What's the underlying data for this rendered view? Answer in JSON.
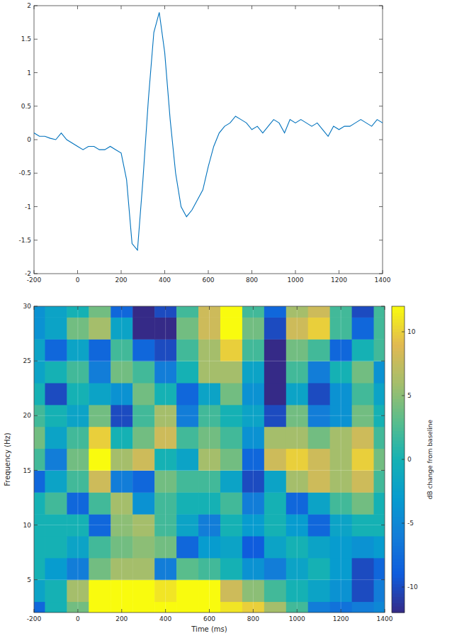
{
  "chart_data": [
    {
      "type": "line",
      "x": [
        -200,
        -175,
        -150,
        -125,
        -100,
        -75,
        -50,
        -25,
        0,
        25,
        50,
        75,
        100,
        125,
        150,
        175,
        200,
        225,
        250,
        275,
        300,
        325,
        350,
        375,
        400,
        425,
        450,
        475,
        500,
        525,
        550,
        575,
        600,
        625,
        650,
        675,
        700,
        725,
        750,
        775,
        800,
        825,
        850,
        875,
        900,
        925,
        950,
        975,
        1000,
        1025,
        1050,
        1075,
        1100,
        1125,
        1150,
        1175,
        1200,
        1225,
        1250,
        1275,
        1300,
        1325,
        1350,
        1375,
        1400
      ],
      "values": [
        0.1,
        0.05,
        0.05,
        0.02,
        0,
        0.1,
        0,
        -0.05,
        -0.1,
        -0.15,
        -0.1,
        -0.1,
        -0.15,
        -0.15,
        -0.1,
        -0.15,
        -0.2,
        -0.6,
        -1.55,
        -1.65,
        -0.6,
        0.6,
        1.6,
        1.9,
        1.3,
        0.3,
        -0.5,
        -1.0,
        -1.15,
        -1.05,
        -0.9,
        -0.75,
        -0.4,
        -0.1,
        0.1,
        0.2,
        0.25,
        0.35,
        0.3,
        0.25,
        0.15,
        0.2,
        0.1,
        0.2,
        0.3,
        0.25,
        0.1,
        0.3,
        0.25,
        0.3,
        0.25,
        0.2,
        0.25,
        0.15,
        0.05,
        0.2,
        0.15,
        0.2,
        0.2,
        0.25,
        0.3,
        0.25,
        0.2,
        0.3,
        0.25
      ],
      "color": "#0072bd",
      "xlim": [
        -200,
        1400
      ],
      "xticks": [
        -200,
        0,
        200,
        400,
        600,
        800,
        1000,
        1200,
        1400
      ],
      "ylim": [
        -2,
        2
      ],
      "yticks": [
        -2,
        -1.5,
        -1,
        -0.5,
        0,
        0.5,
        1,
        1.5,
        2
      ],
      "grid": false
    },
    {
      "type": "heatmap",
      "x_label": "Time (ms)",
      "y_label": "Frequency (Hz)",
      "x": [
        -200,
        -100,
        0,
        100,
        200,
        300,
        400,
        500,
        600,
        700,
        800,
        900,
        1000,
        1100,
        1200,
        1300,
        1400
      ],
      "y": [
        2,
        4,
        6,
        8,
        10,
        12,
        14,
        16,
        18,
        20,
        22,
        24,
        26,
        28,
        30
      ],
      "values": [
        [
          -8,
          0,
          4,
          12,
          12,
          12,
          12,
          12,
          12,
          11,
          10,
          6,
          2,
          -6,
          -7,
          -6,
          -5
        ],
        [
          -2,
          0,
          6,
          12,
          12,
          12,
          11,
          12,
          12,
          8,
          5,
          2,
          0,
          -2,
          -4,
          -10,
          -6
        ],
        [
          0,
          -3,
          -6,
          4,
          6,
          6,
          -6,
          3,
          2,
          0,
          -4,
          -6,
          -2,
          0,
          -3,
          -10,
          -8
        ],
        [
          0,
          0,
          -2,
          2,
          4,
          5,
          4,
          -8,
          -3,
          -2,
          -9,
          -2,
          0,
          -2,
          -3,
          -4,
          -3
        ],
        [
          0,
          0,
          0,
          -8,
          5,
          6,
          2,
          -2,
          -6,
          0,
          -3,
          0,
          -3,
          -8,
          -2,
          0,
          0
        ],
        [
          0,
          2,
          -8,
          2,
          6,
          -4,
          2,
          0,
          0,
          2,
          -6,
          0,
          -8,
          -2,
          2,
          4,
          0
        ],
        [
          -8,
          -2,
          2,
          8,
          -6,
          -8,
          4,
          2,
          2,
          -2,
          -10,
          -2,
          6,
          8,
          6,
          8,
          2
        ],
        [
          2,
          -6,
          4,
          12,
          6,
          8,
          0,
          -2,
          6,
          4,
          -8,
          8,
          10,
          8,
          6,
          10,
          4
        ],
        [
          4,
          -2,
          2,
          10,
          0,
          4,
          8,
          2,
          4,
          2,
          -4,
          6,
          6,
          4,
          6,
          8,
          2
        ],
        [
          2,
          0,
          -2,
          4,
          -10,
          2,
          6,
          -6,
          2,
          0,
          -2,
          -10,
          4,
          -6,
          -4,
          4,
          0
        ],
        [
          0,
          -10,
          0,
          -2,
          -4,
          4,
          0,
          -8,
          -2,
          4,
          -4,
          -12,
          -2,
          -10,
          -4,
          2,
          -2
        ],
        [
          -2,
          0,
          2,
          -6,
          4,
          2,
          -6,
          0,
          6,
          6,
          -2,
          -12,
          2,
          -6,
          0,
          4,
          -4
        ],
        [
          -2,
          -8,
          -2,
          -8,
          2,
          -8,
          -10,
          2,
          6,
          10,
          2,
          -12,
          4,
          2,
          -8,
          0,
          2
        ],
        [
          -4,
          -2,
          4,
          6,
          -2,
          -12,
          -12,
          4,
          8,
          12,
          4,
          -10,
          8,
          10,
          2,
          -8,
          2
        ],
        [
          -4,
          -2,
          0,
          4,
          -8,
          -12,
          -10,
          2,
          8,
          12,
          2,
          -8,
          6,
          8,
          2,
          -10,
          2
        ]
      ],
      "xlim": [
        -200,
        1400
      ],
      "xticks": [
        -200,
        0,
        200,
        400,
        600,
        800,
        1000,
        1200,
        1400
      ],
      "ylim": [
        2,
        30
      ],
      "yticks": [
        5,
        10,
        15,
        20,
        25,
        30
      ],
      "grid": true,
      "colorbar": {
        "label": "dB change from baseline",
        "range": [
          -12,
          12
        ],
        "ticks": [
          -10,
          -5,
          0,
          5,
          10
        ]
      }
    }
  ]
}
